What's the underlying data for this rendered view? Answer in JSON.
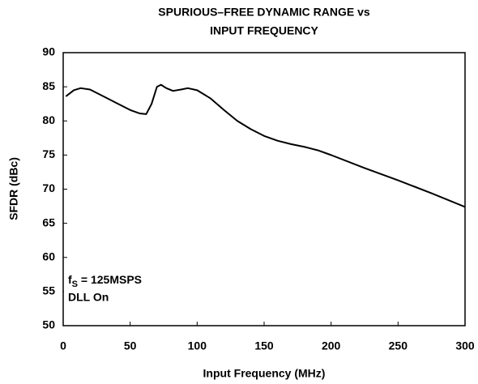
{
  "chart_data": {
    "type": "line",
    "title": [
      "SPURIOUS–FREE DYNAMIC RANGE vs",
      "INPUT FREQUENCY"
    ],
    "xlabel": "Input Frequency (MHz)",
    "ylabel": "SFDR (dBc)",
    "annotation": {
      "symbol": "f",
      "subscript": "S",
      "text": " = 125MSPS",
      "note": "DLL On"
    },
    "x": [
      2,
      8,
      13,
      20,
      30,
      40,
      50,
      57,
      62,
      66,
      70,
      73,
      77,
      82,
      88,
      93,
      100,
      110,
      120,
      130,
      140,
      150,
      160,
      170,
      180,
      190,
      200,
      225,
      250,
      275,
      300
    ],
    "series": [
      {
        "color": "#000000",
        "values": [
          83.6,
          84.5,
          84.8,
          84.6,
          83.6,
          82.6,
          81.6,
          81.1,
          81.0,
          82.5,
          85.0,
          85.3,
          84.8,
          84.4,
          84.6,
          84.8,
          84.5,
          83.3,
          81.6,
          80.0,
          78.8,
          77.8,
          77.1,
          76.6,
          76.2,
          75.7,
          75.0,
          73.1,
          71.3,
          69.4,
          67.4
        ]
      }
    ],
    "xlim": [
      0,
      300
    ],
    "xticks": [
      0,
      50,
      100,
      150,
      200,
      250,
      300
    ],
    "ylim": [
      50,
      90
    ],
    "yticks": [
      50,
      55,
      60,
      65,
      70,
      75,
      80,
      85,
      90
    ],
    "grid": false
  }
}
